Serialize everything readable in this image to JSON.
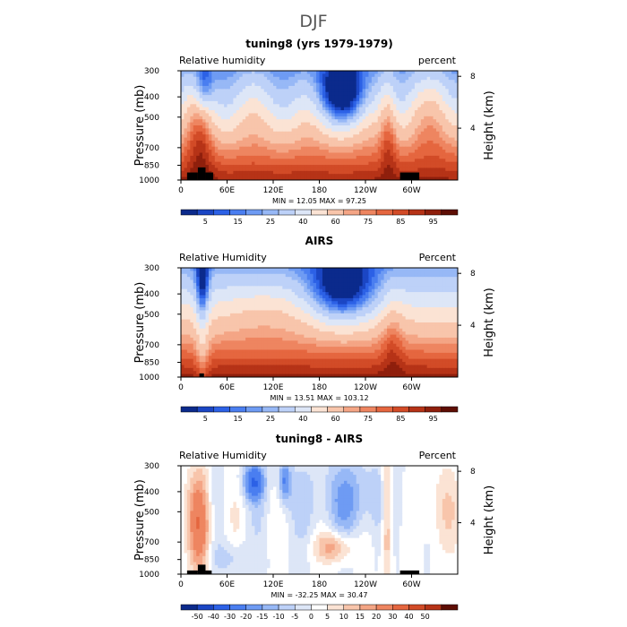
{
  "figure": {
    "title": "DJF"
  },
  "colors": {
    "rh_scale": [
      "#0b2a8c",
      "#1b46c4",
      "#2c61e6",
      "#4a7ef0",
      "#6e9bf3",
      "#97b8f6",
      "#bdd1f8",
      "#dde6f7",
      "#fbe3d4",
      "#f8c5ab",
      "#f4a585",
      "#ee8560",
      "#e5663f",
      "#d24b27",
      "#b63317",
      "#8f1f0c",
      "#5e0e04"
    ],
    "diff_scale": [
      "#0b2a8c",
      "#1b46c4",
      "#2c61e6",
      "#4a7ef0",
      "#6e9bf3",
      "#97b8f6",
      "#bdd1f8",
      "#dde6f7",
      "#ffffff",
      "#fbe3d4",
      "#f8c5ab",
      "#f4a585",
      "#ee8560",
      "#e5663f",
      "#d24b27",
      "#b63317",
      "#5e0e04"
    ],
    "topography": "#000000"
  },
  "chart_data": [
    {
      "type": "heatmap",
      "title": "tuning8 (yrs 1979-1979)",
      "left_label": "Relative humidity",
      "right_label": "percent",
      "ylabel": "Pressure (mb)",
      "y2label": "Height (km)",
      "x_ticks": [
        "0",
        "60E",
        "120E",
        "180",
        "120W",
        "60W"
      ],
      "x_tick_lon": [
        0,
        60,
        120,
        180,
        240,
        300
      ],
      "xlim": [
        0,
        360
      ],
      "y_ticks": [
        "300",
        "400",
        "500",
        "700",
        "850",
        "1000"
      ],
      "y_tick_values": [
        300,
        400,
        500,
        700,
        850,
        1000
      ],
      "ylim": [
        1000,
        300
      ],
      "y2_ticks": [
        "8",
        "4"
      ],
      "y2_tick_km": [
        8,
        4
      ],
      "stats": "MIN =   12.05   MAX =   97.25",
      "min": 12.05,
      "max": 97.25,
      "colorbar_labels": [
        "5",
        "15",
        "25",
        "40",
        "60",
        "75",
        "85",
        "95"
      ],
      "levels": [
        5,
        10,
        15,
        20,
        25,
        30,
        40,
        50,
        60,
        70,
        75,
        80,
        85,
        90,
        95
      ]
    },
    {
      "type": "heatmap",
      "title": "AIRS",
      "left_label": "Relative Humidity",
      "right_label": "Percent",
      "ylabel": "Pressure (mb)",
      "y2label": "Height (km)",
      "x_ticks": [
        "0",
        "60E",
        "120E",
        "180",
        "120W",
        "60W"
      ],
      "x_tick_lon": [
        0,
        60,
        120,
        180,
        240,
        300
      ],
      "xlim": [
        0,
        360
      ],
      "y_ticks": [
        "300",
        "400",
        "500",
        "700",
        "850",
        "1000"
      ],
      "y_tick_values": [
        300,
        400,
        500,
        700,
        850,
        1000
      ],
      "ylim": [
        1000,
        300
      ],
      "y2_ticks": [
        "8",
        "4"
      ],
      "y2_tick_km": [
        8,
        4
      ],
      "stats": "MIN =   13.51   MAX = 103.12",
      "min": 13.51,
      "max": 103.12,
      "colorbar_labels": [
        "5",
        "15",
        "25",
        "40",
        "60",
        "75",
        "85",
        "95"
      ],
      "levels": [
        5,
        10,
        15,
        20,
        25,
        30,
        40,
        50,
        60,
        70,
        75,
        80,
        85,
        90,
        95
      ]
    },
    {
      "type": "heatmap",
      "title": "tuning8 - AIRS",
      "left_label": "Relative Humidity",
      "right_label": "Percent",
      "ylabel": "Pressure (mb)",
      "y2label": "Height (km)",
      "x_ticks": [
        "0",
        "60E",
        "120E",
        "180",
        "120W",
        "60W"
      ],
      "x_tick_lon": [
        0,
        60,
        120,
        180,
        240,
        300
      ],
      "xlim": [
        0,
        360
      ],
      "y_ticks": [
        "300",
        "400",
        "500",
        "700",
        "850",
        "1000"
      ],
      "y_tick_values": [
        300,
        400,
        500,
        700,
        850,
        1000
      ],
      "ylim": [
        1000,
        300
      ],
      "y2_ticks": [
        "8",
        "4"
      ],
      "y2_tick_km": [
        8,
        4
      ],
      "stats": "MIN =  -32.25   MAX =   30.47",
      "min": -32.25,
      "max": 30.47,
      "colorbar_labels": [
        "-50",
        "-40",
        "-30",
        "-20",
        "-15",
        "-10",
        "-5",
        "0",
        "5",
        "10",
        "15",
        "20",
        "30",
        "40",
        "50"
      ],
      "levels": [
        -50,
        -40,
        -30,
        -20,
        -15,
        -10,
        -5,
        0,
        5,
        10,
        15,
        20,
        30,
        40,
        50
      ]
    }
  ]
}
